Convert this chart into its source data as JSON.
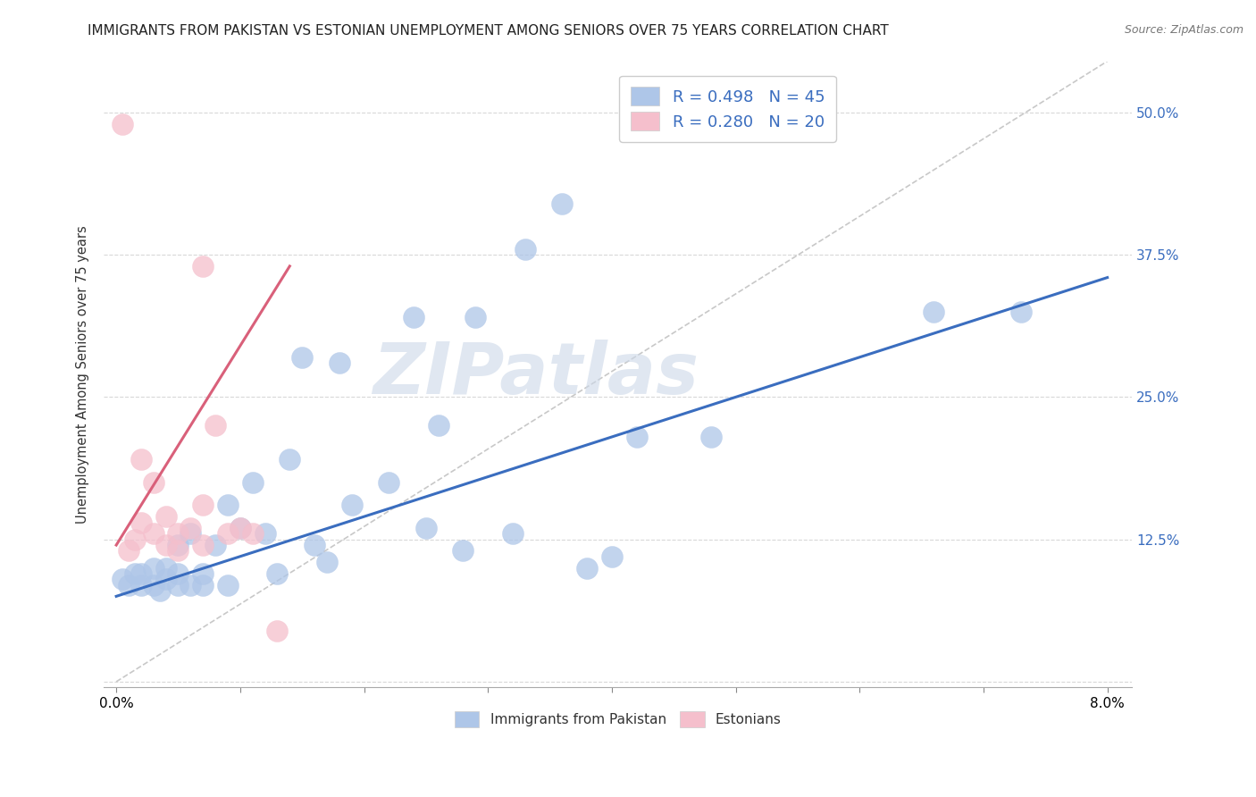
{
  "title": "IMMIGRANTS FROM PAKISTAN VS ESTONIAN UNEMPLOYMENT AMONG SENIORS OVER 75 YEARS CORRELATION CHART",
  "source": "Source: ZipAtlas.com",
  "ylabel": "Unemployment Among Seniors over 75 years",
  "yticks": [
    0.0,
    0.125,
    0.25,
    0.375,
    0.5
  ],
  "ytick_labels": [
    "",
    "12.5%",
    "25.0%",
    "37.5%",
    "50.0%"
  ],
  "xticks": [
    0.0,
    0.01,
    0.02,
    0.03,
    0.04,
    0.05,
    0.06,
    0.07,
    0.08
  ],
  "xlim": [
    -0.001,
    0.082
  ],
  "ylim": [
    -0.005,
    0.545
  ],
  "legend_blue_label": "R = 0.498   N = 45",
  "legend_pink_label": "R = 0.280   N = 20",
  "blue_color": "#aec6e8",
  "pink_color": "#f5bfcc",
  "blue_line_color": "#3a6dbf",
  "pink_line_color": "#d9607a",
  "ref_line_color": "#c8c8c8",
  "watermark": "ZIPatlas",
  "watermark_color": "#ccd8e8",
  "blue_scatter_x": [
    0.0005,
    0.001,
    0.0015,
    0.002,
    0.002,
    0.003,
    0.003,
    0.0035,
    0.004,
    0.004,
    0.005,
    0.005,
    0.005,
    0.006,
    0.006,
    0.007,
    0.007,
    0.008,
    0.009,
    0.009,
    0.01,
    0.011,
    0.012,
    0.013,
    0.014,
    0.015,
    0.016,
    0.017,
    0.018,
    0.019,
    0.022,
    0.024,
    0.025,
    0.026,
    0.028,
    0.029,
    0.032,
    0.033,
    0.036,
    0.038,
    0.04,
    0.042,
    0.048,
    0.066,
    0.073
  ],
  "blue_scatter_y": [
    0.09,
    0.085,
    0.095,
    0.085,
    0.095,
    0.085,
    0.1,
    0.08,
    0.1,
    0.09,
    0.085,
    0.12,
    0.095,
    0.085,
    0.13,
    0.085,
    0.095,
    0.12,
    0.085,
    0.155,
    0.135,
    0.175,
    0.13,
    0.095,
    0.195,
    0.285,
    0.12,
    0.105,
    0.28,
    0.155,
    0.175,
    0.32,
    0.135,
    0.225,
    0.115,
    0.32,
    0.13,
    0.38,
    0.42,
    0.1,
    0.11,
    0.215,
    0.215,
    0.325,
    0.325
  ],
  "pink_scatter_x": [
    0.0005,
    0.001,
    0.0015,
    0.002,
    0.002,
    0.003,
    0.003,
    0.004,
    0.004,
    0.005,
    0.005,
    0.006,
    0.007,
    0.007,
    0.007,
    0.008,
    0.009,
    0.01,
    0.011,
    0.013
  ],
  "pink_scatter_y": [
    0.49,
    0.115,
    0.125,
    0.195,
    0.14,
    0.175,
    0.13,
    0.145,
    0.12,
    0.13,
    0.115,
    0.135,
    0.12,
    0.155,
    0.365,
    0.225,
    0.13,
    0.135,
    0.13,
    0.045
  ],
  "blue_trend_x": [
    0.0,
    0.08
  ],
  "blue_trend_y": [
    0.075,
    0.355
  ],
  "pink_trend_x": [
    0.0,
    0.014
  ],
  "pink_trend_y": [
    0.12,
    0.365
  ],
  "ref_line_x": [
    0.0,
    0.08
  ],
  "ref_line_y": [
    0.0,
    0.545
  ]
}
